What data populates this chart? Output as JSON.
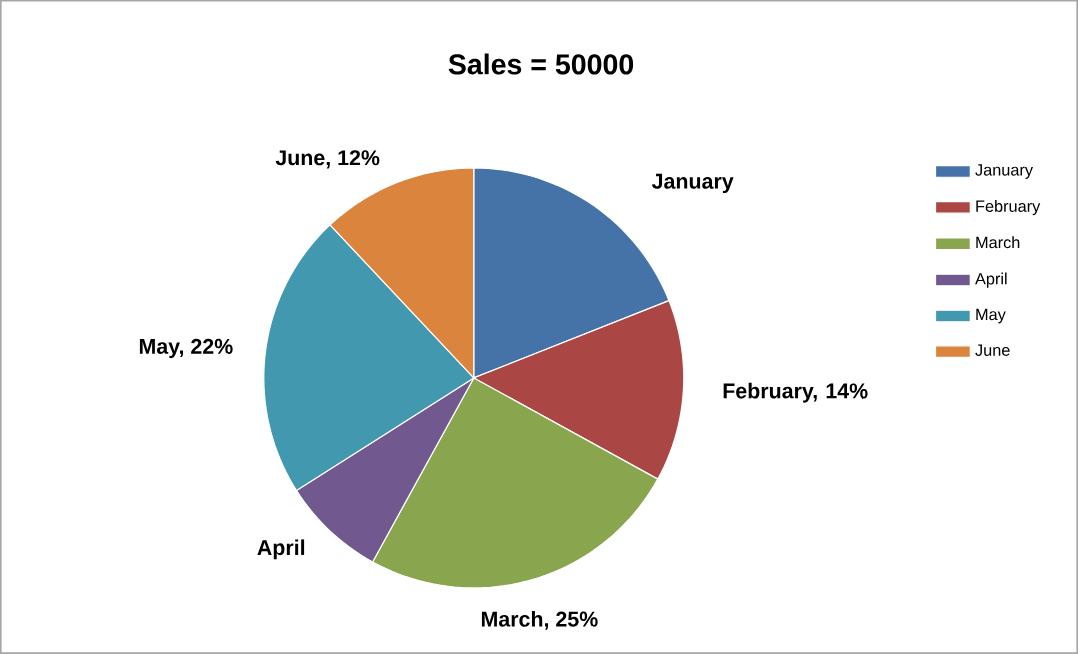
{
  "chart_data": {
    "type": "pie",
    "title": "Sales = 50000",
    "categories": [
      "January",
      "February",
      "March",
      "April",
      "May",
      "June"
    ],
    "values": [
      19,
      14,
      25,
      8,
      22,
      12
    ],
    "value_labels": [
      "January",
      "February, 14%",
      "March, 25%",
      "April",
      "May, 22%",
      "June, 12%"
    ],
    "colors": [
      "#4572a7",
      "#aa4643",
      "#89a54e",
      "#71588f",
      "#4198af",
      "#db843d"
    ],
    "legend": "right"
  }
}
